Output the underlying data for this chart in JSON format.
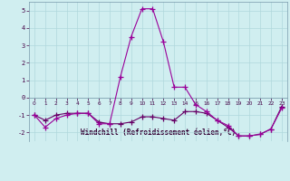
{
  "xlabel": "Windchill (Refroidissement éolien,°C)",
  "bg_color": "#d0eef0",
  "grid_color": "#b0d8dc",
  "line_color1": "#990099",
  "line_color2": "#660066",
  "ylim": [
    -2.5,
    5.5
  ],
  "xlim": [
    -0.5,
    23.5
  ],
  "yticks": [
    -2,
    -1,
    0,
    1,
    2,
    3,
    4,
    5
  ],
  "xticks": [
    0,
    1,
    2,
    3,
    4,
    5,
    6,
    7,
    8,
    9,
    10,
    11,
    12,
    13,
    14,
    15,
    16,
    17,
    18,
    19,
    20,
    21,
    22,
    23
  ],
  "curve1_x": [
    0,
    1,
    2,
    3,
    4,
    5,
    6,
    7,
    8,
    9,
    10,
    11,
    12,
    13,
    14,
    15,
    16,
    17,
    18,
    19,
    20,
    21,
    22,
    23
  ],
  "curve1_y": [
    -1.0,
    -1.7,
    -1.2,
    -1.0,
    -0.9,
    -0.9,
    -1.5,
    -1.5,
    1.2,
    3.5,
    5.1,
    5.1,
    3.2,
    0.6,
    0.6,
    -0.4,
    -0.8,
    -1.3,
    -1.6,
    -2.2,
    -2.2,
    -2.1,
    -1.8,
    -0.6
  ],
  "curve2_x": [
    0,
    1,
    2,
    3,
    4,
    5,
    6,
    7,
    8,
    9,
    10,
    11,
    12,
    13,
    14,
    15,
    16,
    17,
    18,
    19,
    20,
    21,
    22,
    23
  ],
  "curve2_y": [
    -1.0,
    -1.3,
    -1.0,
    -0.9,
    -0.9,
    -0.9,
    -1.4,
    -1.5,
    -1.5,
    -1.4,
    -1.1,
    -1.1,
    -1.2,
    -1.3,
    -0.8,
    -0.8,
    -0.9,
    -1.3,
    -1.7,
    -2.2,
    -2.2,
    -2.1,
    -1.8,
    -0.5
  ],
  "marker": "+",
  "markersize": 4,
  "linewidth": 0.8
}
